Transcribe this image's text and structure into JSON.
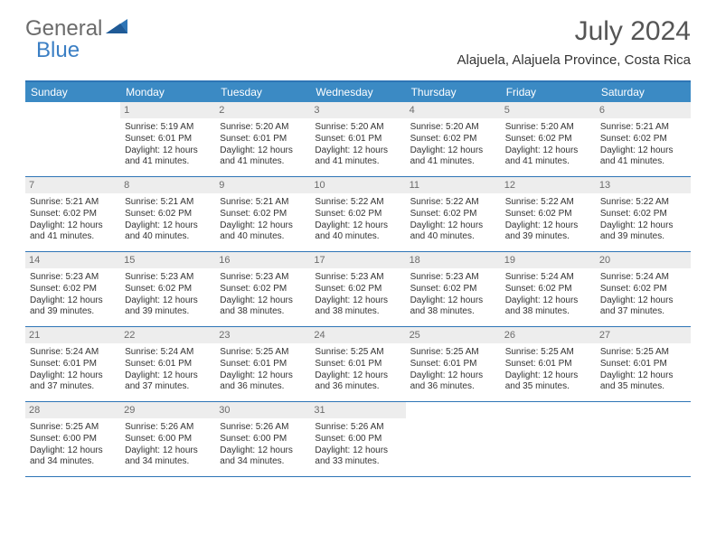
{
  "brand": {
    "word1": "General",
    "word2": "Blue"
  },
  "title": "July 2024",
  "location": "Alajuela, Alajuela Province, Costa Rica",
  "colors": {
    "header_bg": "#3b8ac4",
    "header_border": "#2e75b6",
    "daynum_bg": "#ededed",
    "text": "#333333",
    "muted": "#6b6b6b"
  },
  "day_names": [
    "Sunday",
    "Monday",
    "Tuesday",
    "Wednesday",
    "Thursday",
    "Friday",
    "Saturday"
  ],
  "weeks": [
    [
      null,
      {
        "n": "1",
        "sr": "Sunrise: 5:19 AM",
        "ss": "Sunset: 6:01 PM",
        "d1": "Daylight: 12 hours",
        "d2": "and 41 minutes."
      },
      {
        "n": "2",
        "sr": "Sunrise: 5:20 AM",
        "ss": "Sunset: 6:01 PM",
        "d1": "Daylight: 12 hours",
        "d2": "and 41 minutes."
      },
      {
        "n": "3",
        "sr": "Sunrise: 5:20 AM",
        "ss": "Sunset: 6:01 PM",
        "d1": "Daylight: 12 hours",
        "d2": "and 41 minutes."
      },
      {
        "n": "4",
        "sr": "Sunrise: 5:20 AM",
        "ss": "Sunset: 6:02 PM",
        "d1": "Daylight: 12 hours",
        "d2": "and 41 minutes."
      },
      {
        "n": "5",
        "sr": "Sunrise: 5:20 AM",
        "ss": "Sunset: 6:02 PM",
        "d1": "Daylight: 12 hours",
        "d2": "and 41 minutes."
      },
      {
        "n": "6",
        "sr": "Sunrise: 5:21 AM",
        "ss": "Sunset: 6:02 PM",
        "d1": "Daylight: 12 hours",
        "d2": "and 41 minutes."
      }
    ],
    [
      {
        "n": "7",
        "sr": "Sunrise: 5:21 AM",
        "ss": "Sunset: 6:02 PM",
        "d1": "Daylight: 12 hours",
        "d2": "and 41 minutes."
      },
      {
        "n": "8",
        "sr": "Sunrise: 5:21 AM",
        "ss": "Sunset: 6:02 PM",
        "d1": "Daylight: 12 hours",
        "d2": "and 40 minutes."
      },
      {
        "n": "9",
        "sr": "Sunrise: 5:21 AM",
        "ss": "Sunset: 6:02 PM",
        "d1": "Daylight: 12 hours",
        "d2": "and 40 minutes."
      },
      {
        "n": "10",
        "sr": "Sunrise: 5:22 AM",
        "ss": "Sunset: 6:02 PM",
        "d1": "Daylight: 12 hours",
        "d2": "and 40 minutes."
      },
      {
        "n": "11",
        "sr": "Sunrise: 5:22 AM",
        "ss": "Sunset: 6:02 PM",
        "d1": "Daylight: 12 hours",
        "d2": "and 40 minutes."
      },
      {
        "n": "12",
        "sr": "Sunrise: 5:22 AM",
        "ss": "Sunset: 6:02 PM",
        "d1": "Daylight: 12 hours",
        "d2": "and 39 minutes."
      },
      {
        "n": "13",
        "sr": "Sunrise: 5:22 AM",
        "ss": "Sunset: 6:02 PM",
        "d1": "Daylight: 12 hours",
        "d2": "and 39 minutes."
      }
    ],
    [
      {
        "n": "14",
        "sr": "Sunrise: 5:23 AM",
        "ss": "Sunset: 6:02 PM",
        "d1": "Daylight: 12 hours",
        "d2": "and 39 minutes."
      },
      {
        "n": "15",
        "sr": "Sunrise: 5:23 AM",
        "ss": "Sunset: 6:02 PM",
        "d1": "Daylight: 12 hours",
        "d2": "and 39 minutes."
      },
      {
        "n": "16",
        "sr": "Sunrise: 5:23 AM",
        "ss": "Sunset: 6:02 PM",
        "d1": "Daylight: 12 hours",
        "d2": "and 38 minutes."
      },
      {
        "n": "17",
        "sr": "Sunrise: 5:23 AM",
        "ss": "Sunset: 6:02 PM",
        "d1": "Daylight: 12 hours",
        "d2": "and 38 minutes."
      },
      {
        "n": "18",
        "sr": "Sunrise: 5:23 AM",
        "ss": "Sunset: 6:02 PM",
        "d1": "Daylight: 12 hours",
        "d2": "and 38 minutes."
      },
      {
        "n": "19",
        "sr": "Sunrise: 5:24 AM",
        "ss": "Sunset: 6:02 PM",
        "d1": "Daylight: 12 hours",
        "d2": "and 38 minutes."
      },
      {
        "n": "20",
        "sr": "Sunrise: 5:24 AM",
        "ss": "Sunset: 6:02 PM",
        "d1": "Daylight: 12 hours",
        "d2": "and 37 minutes."
      }
    ],
    [
      {
        "n": "21",
        "sr": "Sunrise: 5:24 AM",
        "ss": "Sunset: 6:01 PM",
        "d1": "Daylight: 12 hours",
        "d2": "and 37 minutes."
      },
      {
        "n": "22",
        "sr": "Sunrise: 5:24 AM",
        "ss": "Sunset: 6:01 PM",
        "d1": "Daylight: 12 hours",
        "d2": "and 37 minutes."
      },
      {
        "n": "23",
        "sr": "Sunrise: 5:25 AM",
        "ss": "Sunset: 6:01 PM",
        "d1": "Daylight: 12 hours",
        "d2": "and 36 minutes."
      },
      {
        "n": "24",
        "sr": "Sunrise: 5:25 AM",
        "ss": "Sunset: 6:01 PM",
        "d1": "Daylight: 12 hours",
        "d2": "and 36 minutes."
      },
      {
        "n": "25",
        "sr": "Sunrise: 5:25 AM",
        "ss": "Sunset: 6:01 PM",
        "d1": "Daylight: 12 hours",
        "d2": "and 36 minutes."
      },
      {
        "n": "26",
        "sr": "Sunrise: 5:25 AM",
        "ss": "Sunset: 6:01 PM",
        "d1": "Daylight: 12 hours",
        "d2": "and 35 minutes."
      },
      {
        "n": "27",
        "sr": "Sunrise: 5:25 AM",
        "ss": "Sunset: 6:01 PM",
        "d1": "Daylight: 12 hours",
        "d2": "and 35 minutes."
      }
    ],
    [
      {
        "n": "28",
        "sr": "Sunrise: 5:25 AM",
        "ss": "Sunset: 6:00 PM",
        "d1": "Daylight: 12 hours",
        "d2": "and 34 minutes."
      },
      {
        "n": "29",
        "sr": "Sunrise: 5:26 AM",
        "ss": "Sunset: 6:00 PM",
        "d1": "Daylight: 12 hours",
        "d2": "and 34 minutes."
      },
      {
        "n": "30",
        "sr": "Sunrise: 5:26 AM",
        "ss": "Sunset: 6:00 PM",
        "d1": "Daylight: 12 hours",
        "d2": "and 34 minutes."
      },
      {
        "n": "31",
        "sr": "Sunrise: 5:26 AM",
        "ss": "Sunset: 6:00 PM",
        "d1": "Daylight: 12 hours",
        "d2": "and 33 minutes."
      },
      null,
      null,
      null
    ]
  ]
}
